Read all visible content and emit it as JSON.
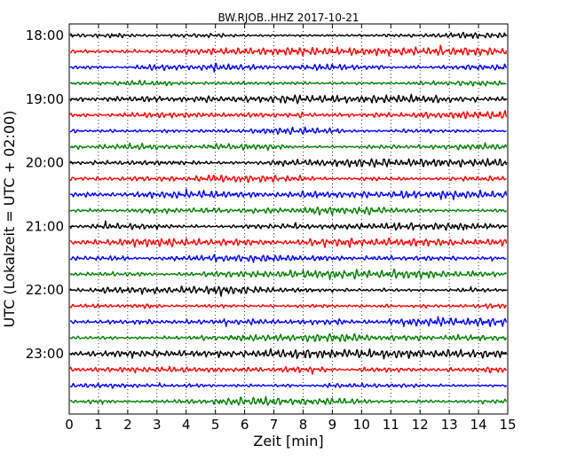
{
  "chart_data": {
    "type": "line",
    "title": "BW.RJOB..HHZ 2017-10-21",
    "xlabel": "Zeit  [min]",
    "ylabel": "UTC (Lokalzeit = UTC + 02:00)",
    "xlim": [
      0,
      15
    ],
    "x_ticks": [
      "0",
      "1",
      "2",
      "3",
      "4",
      "5",
      "6",
      "7",
      "8",
      "9",
      "10",
      "11",
      "12",
      "13",
      "14",
      "15"
    ],
    "y_ticks": [
      "18:00",
      "19:00",
      "20:00",
      "21:00",
      "22:00",
      "23:00"
    ],
    "grid": "vertical dotted",
    "trace_colors": [
      "#000000",
      "#ff0000",
      "#0000ff",
      "#008000"
    ],
    "trace_count": 24
  }
}
